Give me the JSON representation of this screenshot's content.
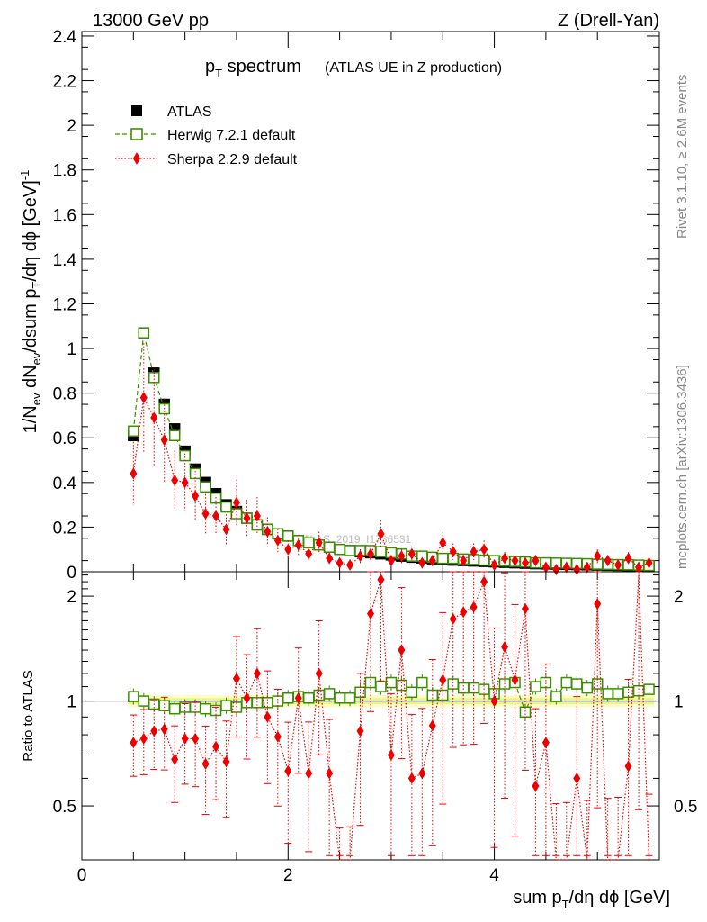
{
  "header": {
    "left": "13000 GeV pp",
    "right": "Z (Drell-Yan)"
  },
  "title": {
    "main": "p",
    "main_sub": "T",
    "main_rest": " spectrum",
    "paren": "(ATLAS UE in Z production)"
  },
  "side_text": {
    "upper": "Rivet 3.1.10, ≥ 2.6M events",
    "lower": "mcplots.cern.ch [arXiv:1306.3436]"
  },
  "watermark": "ATLAS_2019_I1736531",
  "legend": {
    "atlas": "ATLAS",
    "herwig": "Herwig 7.2.1 default",
    "sherpa": "Sherpa 2.2.9 default"
  },
  "colors": {
    "atlas": "#000000",
    "herwig": "#3a8f00",
    "sherpa": "#ee0000",
    "band_inner": "#e8f58a",
    "band_outer": "#fdfdc8"
  },
  "chart_data": [
    {
      "type": "scatter",
      "panel": "main",
      "ylabel": "1/N_ev dN_ev/dsum p_T/dη dφ [GeV]^-1",
      "ylim": [
        0,
        2.42
      ],
      "xlim": [
        0,
        5.6
      ],
      "y_ticks": [
        "0",
        "0.2",
        "0.4",
        "0.6",
        "0.8",
        "1",
        "1.2",
        "1.4",
        "1.6",
        "1.8",
        "2",
        "2.2",
        "2.4"
      ],
      "x": [
        0.5,
        0.6,
        0.7,
        0.8,
        0.9,
        1.0,
        1.1,
        1.2,
        1.3,
        1.4,
        1.5,
        1.6,
        1.7,
        1.8,
        1.9,
        2.0,
        2.1,
        2.2,
        2.3,
        2.4,
        2.5,
        2.6,
        2.7,
        2.8,
        2.9,
        3.0,
        3.1,
        3.2,
        3.3,
        3.4,
        3.5,
        3.6,
        3.7,
        3.8,
        3.9,
        4.0,
        4.1,
        4.2,
        4.3,
        4.4,
        4.5,
        4.6,
        4.7,
        4.8,
        4.9,
        5.0,
        5.1,
        5.2,
        5.3,
        5.4,
        5.5
      ],
      "series": [
        {
          "name": "ATLAS",
          "values": [
            0.61,
            1.07,
            0.89,
            0.75,
            0.64,
            0.54,
            0.46,
            0.4,
            0.35,
            0.3,
            0.27,
            0.24,
            0.21,
            0.19,
            0.17,
            0.16,
            0.14,
            0.13,
            0.12,
            0.11,
            0.1,
            0.095,
            0.09,
            0.085,
            0.08,
            0.075,
            0.07,
            0.065,
            0.062,
            0.058,
            0.055,
            0.052,
            0.05,
            0.048,
            0.046,
            0.044,
            0.042,
            0.04,
            0.038,
            0.036,
            0.035,
            0.034,
            0.033,
            0.032,
            0.031,
            0.03,
            0.029,
            0.028,
            0.027,
            0.026,
            0.025
          ]
        },
        {
          "name": "Herwig 7.2.1 default",
          "values": [
            0.63,
            1.07,
            0.87,
            0.73,
            0.61,
            0.52,
            0.44,
            0.38,
            0.33,
            0.29,
            0.26,
            0.24,
            0.21,
            0.19,
            0.17,
            0.16,
            0.14,
            0.13,
            0.12,
            0.11,
            0.1,
            0.095,
            0.095,
            0.095,
            0.09,
            0.085,
            0.08,
            0.07,
            0.07,
            0.065,
            0.06,
            0.06,
            0.057,
            0.055,
            0.052,
            0.05,
            0.048,
            0.046,
            0.044,
            0.04,
            0.04,
            0.039,
            0.038,
            0.037,
            0.036,
            0.034,
            0.033,
            0.032,
            0.031,
            0.03,
            0.028
          ]
        },
        {
          "name": "Sherpa 2.2.9 default",
          "values": [
            0.44,
            0.78,
            0.69,
            0.59,
            0.41,
            0.4,
            0.34,
            0.26,
            0.25,
            0.19,
            0.31,
            0.24,
            0.25,
            0.18,
            0.14,
            0.1,
            0.12,
            0.08,
            0.13,
            0.06,
            0.04,
            0.03,
            0.07,
            0.08,
            0.17,
            0.05,
            0.07,
            0.08,
            0.04,
            0.05,
            0.13,
            0.09,
            0.05,
            0.09,
            0.1,
            0.03,
            0.06,
            0.05,
            0.04,
            0.05,
            0.02,
            0.01,
            0.02,
            0.01,
            0.02,
            0.07,
            0.05,
            0.03,
            0.06,
            0.02,
            0.04
          ]
        }
      ]
    },
    {
      "type": "scatter",
      "panel": "ratio",
      "ylabel": "Ratio to ATLAS",
      "xlabel": "sum p_T/dη dφ [GeV]",
      "ylim": [
        0.35,
        2.35
      ],
      "xlim": [
        0,
        5.6
      ],
      "y_ticks": [
        "0.5",
        "1",
        "2"
      ],
      "x_ticks": [
        "0",
        "2",
        "4"
      ],
      "x": [
        0.5,
        0.6,
        0.7,
        0.8,
        0.9,
        1.0,
        1.1,
        1.2,
        1.3,
        1.4,
        1.5,
        1.6,
        1.7,
        1.8,
        1.9,
        2.0,
        2.1,
        2.2,
        2.3,
        2.4,
        2.5,
        2.6,
        2.7,
        2.8,
        2.9,
        3.0,
        3.1,
        3.2,
        3.3,
        3.4,
        3.5,
        3.6,
        3.7,
        3.8,
        3.9,
        4.0,
        4.1,
        4.2,
        4.3,
        4.4,
        4.5,
        4.6,
        4.7,
        4.8,
        4.9,
        5.0,
        5.1,
        5.2,
        5.3,
        5.4,
        5.5
      ],
      "series": [
        {
          "name": "Herwig 7.2.1 default",
          "values": [
            1.03,
            1.0,
            0.98,
            0.97,
            0.95,
            0.96,
            0.96,
            0.95,
            0.94,
            0.97,
            0.96,
            0.99,
            0.99,
            0.99,
            1.0,
            1.02,
            1.03,
            1.02,
            1.04,
            1.05,
            1.02,
            1.02,
            1.06,
            1.13,
            1.1,
            1.13,
            1.11,
            1.06,
            1.13,
            1.04,
            1.04,
            1.12,
            1.09,
            1.09,
            1.08,
            1.05,
            1.12,
            1.13,
            0.93,
            1.1,
            1.13,
            1.03,
            1.13,
            1.12,
            1.09,
            1.12,
            1.05,
            1.05,
            1.06,
            1.07,
            1.08
          ]
        },
        {
          "name": "Sherpa 2.2.9 default",
          "values": [
            0.76,
            0.78,
            0.82,
            0.83,
            0.68,
            0.78,
            0.78,
            0.66,
            0.74,
            0.67,
            1.16,
            1.02,
            1.2,
            0.9,
            0.79,
            0.63,
            1.02,
            0.62,
            1.2,
            0.62,
            0.3,
            0.3,
            0.82,
            1.78,
            2.23,
            0.7,
            1.4,
            0.6,
            0.62,
            0.85,
            1.15,
            1.72,
            1.8,
            1.86,
            2.2,
            1.0,
            1.43,
            1.15,
            1.84,
            0.57,
            0.76,
            0.3,
            0.3,
            0.6,
            0.3,
            1.9,
            0.3,
            0.3,
            0.65,
            2.3,
            0.3
          ]
        }
      ]
    }
  ]
}
